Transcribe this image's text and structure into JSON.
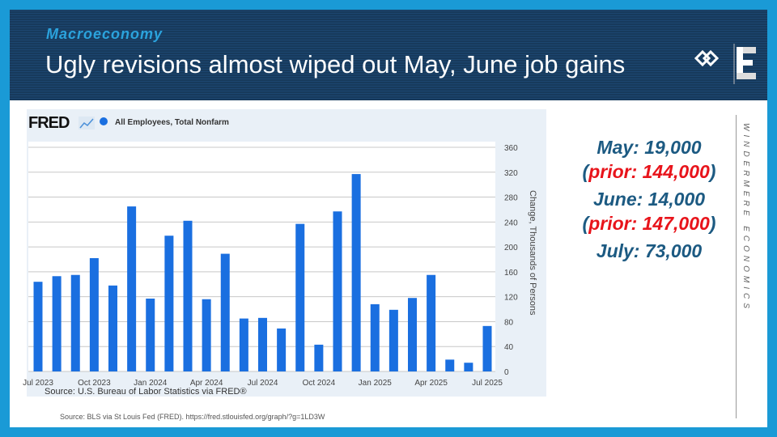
{
  "header": {
    "kicker": "Macroeconomy",
    "title": "Ugly revisions almost wiped out May, June job gains"
  },
  "brand": "WINDERMERE ECONOMICS",
  "stats": {
    "may": "May: 19,000",
    "may_open": "(",
    "may_prior": "prior: 144,000",
    "may_close": ")",
    "june": "June: 14,000",
    "june_open": "(",
    "june_prior": "prior: 147,000",
    "june_close": ")",
    "july": "July: 73,000"
  },
  "footer": "Source: BLS via St Louis Fed (FRED). https://fred.stlouisfed.org/graph/?g=1LD3W",
  "colors": {
    "bar": "#1a6fe0",
    "prior": "#e8141b",
    "stat": "#1c5a82"
  },
  "chart_data": {
    "type": "bar",
    "logo": "FRED",
    "legend": "All Employees, Total Nonfarm",
    "source": "Source: U.S. Bureau of Labor Statistics via FRED®",
    "ylabel": "Change, Thousands of Persons",
    "ylim": [
      0,
      360
    ],
    "yticks": [
      0,
      40,
      80,
      120,
      160,
      200,
      240,
      280,
      320,
      360
    ],
    "categories": [
      "Jul 2023",
      "Aug 2023",
      "Sep 2023",
      "Oct 2023",
      "Nov 2023",
      "Dec 2023",
      "Jan 2024",
      "Feb 2024",
      "Mar 2024",
      "Apr 2024",
      "May 2024",
      "Jun 2024",
      "Jul 2024",
      "Aug 2024",
      "Sep 2024",
      "Oct 2024",
      "Nov 2024",
      "Dec 2024",
      "Jan 2025",
      "Feb 2025",
      "Mar 2025",
      "Apr 2025",
      "May 2025",
      "Jun 2025",
      "Jul 2025"
    ],
    "xticklabels": [
      "Jul 2023",
      "Oct 2023",
      "Jan 2024",
      "Apr 2024",
      "Jul 2024",
      "Oct 2024",
      "Jan 2025",
      "Apr 2025",
      "Jul 2025"
    ],
    "values": [
      144,
      153,
      155,
      182,
      138,
      265,
      117,
      218,
      242,
      116,
      189,
      85,
      86,
      69,
      237,
      43,
      257,
      317,
      108,
      99,
      118,
      155,
      19,
      14,
      73
    ],
    "grid": true,
    "legend_position": "top-left"
  }
}
